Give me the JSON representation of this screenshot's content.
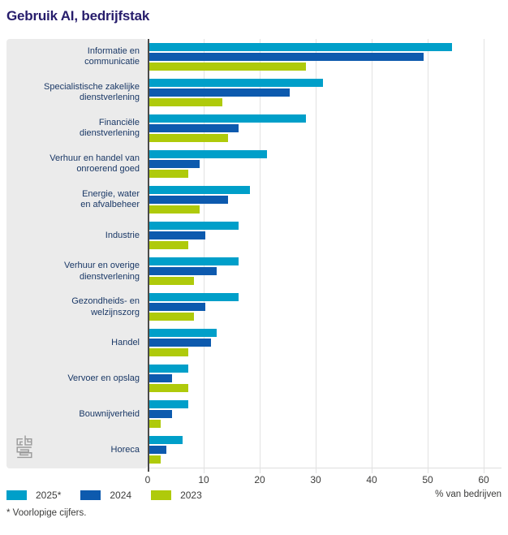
{
  "title": "Gebruik AI, bedrijfstak",
  "footnote": "* Voorlopige cijfers.",
  "chart_data": {
    "type": "bar",
    "orientation": "horizontal",
    "title": "Gebruik AI, bedrijfstak",
    "xlabel": "% van bedrijven",
    "xlim": [
      0,
      60
    ],
    "xticks": [
      0,
      10,
      20,
      30,
      40,
      50,
      60
    ],
    "grid": true,
    "legend_position": "bottom-left",
    "categories": [
      "Informatie en\ncommunicatie",
      "Specialistische zakelijke\ndienstverlening",
      "Financiële\ndienstverlening",
      "Verhuur en handel van\nonroerend goed",
      "Energie, water\nen afvalbeheer",
      "Industrie",
      "Verhuur en overige\ndienstverlening",
      "Gezondheids- en\nwelzijnszorg",
      "Handel",
      "Vervoer en opslag",
      "Bouwnijverheid",
      "Horeca"
    ],
    "series": [
      {
        "name": "2025*",
        "color": "#009fc9",
        "values": [
          54,
          31,
          28,
          21,
          18,
          16,
          16,
          16,
          12,
          7,
          7,
          6
        ]
      },
      {
        "name": "2024",
        "color": "#0d5aae",
        "values": [
          49,
          25,
          16,
          9,
          14,
          10,
          12,
          10,
          11,
          4,
          4,
          3
        ]
      },
      {
        "name": "2023",
        "color": "#afca0b",
        "values": [
          28,
          13,
          14,
          7,
          9,
          7,
          8,
          8,
          7,
          7,
          2,
          2
        ]
      }
    ],
    "colors": {
      "axis_line": "#4a4a49",
      "gridline": "#e2e2e2",
      "panel": "#ebebeb",
      "title": "#271d6c",
      "category_label": "#1a3866"
    },
    "logo": "cbs-logo"
  }
}
